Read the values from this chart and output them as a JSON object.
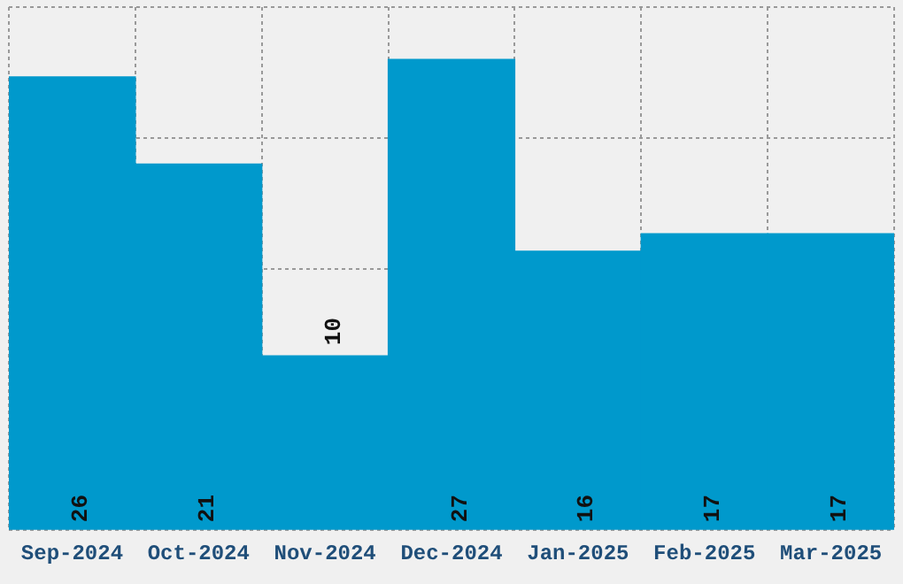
{
  "chart_data": {
    "type": "bar",
    "categories": [
      "Sep-2024",
      "Oct-2024",
      "Nov-2024",
      "Dec-2024",
      "Jan-2025",
      "Feb-2025",
      "Mar-2025"
    ],
    "values": [
      26,
      21,
      10,
      27,
      16,
      17,
      17
    ],
    "color": "#0099cc",
    "ylim": [
      0,
      30
    ],
    "grid": true,
    "tick_labels": "x",
    "data_labels": true
  }
}
